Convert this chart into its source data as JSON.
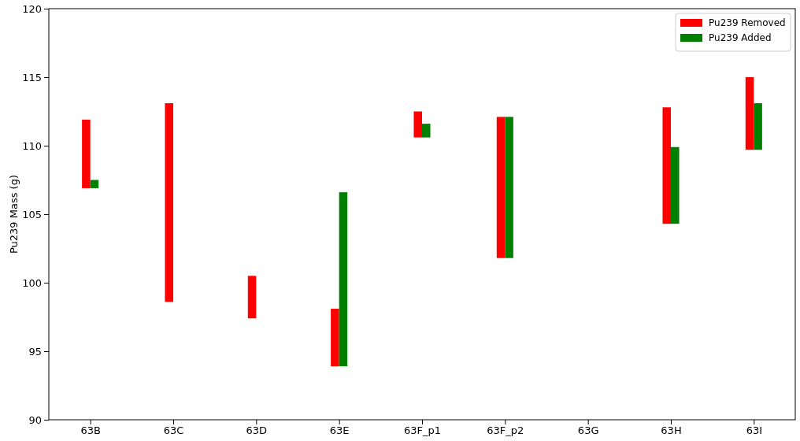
{
  "chart_data": {
    "type": "bar",
    "ylabel": "Pu239 Mass (g)",
    "categories": [
      "63B",
      "63C",
      "63D",
      "63E",
      "63F_p1",
      "63F_p2",
      "63G",
      "63H",
      "63I"
    ],
    "series": [
      {
        "name": "Pu239 Removed",
        "color": "#ff0000",
        "base": [
          106.9,
          98.6,
          97.4,
          93.9,
          110.6,
          101.8,
          null,
          104.3,
          109.7
        ],
        "values": [
          5.0,
          14.5,
          3.1,
          4.2,
          1.9,
          10.3,
          null,
          8.5,
          5.3
        ]
      },
      {
        "name": "Pu239 Added",
        "color": "#008000",
        "base": [
          106.9,
          null,
          null,
          93.9,
          110.6,
          101.8,
          null,
          104.3,
          109.7
        ],
        "values": [
          0.6,
          null,
          null,
          12.7,
          1.0,
          10.3,
          null,
          5.6,
          3.4
        ]
      }
    ],
    "ylim": [
      90,
      120
    ],
    "yticks": [
      90,
      95,
      100,
      105,
      110,
      115,
      120
    ],
    "legend": "top right"
  }
}
